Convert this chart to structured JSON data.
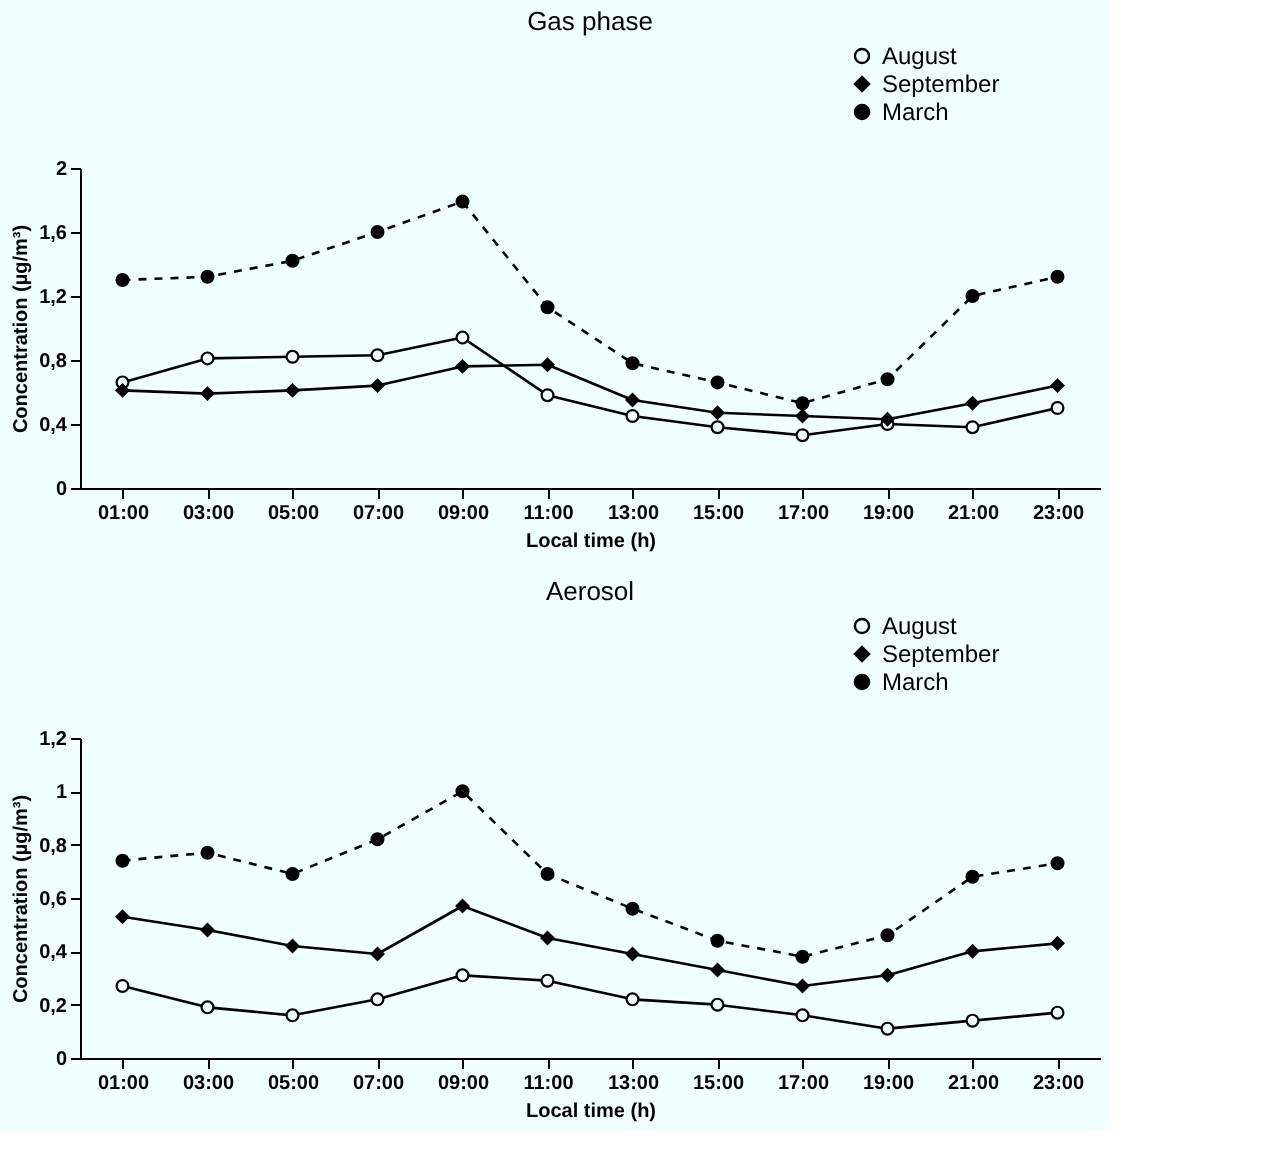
{
  "chart_data": [
    {
      "type": "line",
      "title": "Gas phase",
      "xlabel": "Local time (h)",
      "ylabel": "Concentration (µg/m³)",
      "categories": [
        "01:00",
        "03:00",
        "05:00",
        "07:00",
        "09:00",
        "11:00",
        "13:00",
        "15:00",
        "17:00",
        "19:00",
        "21:00",
        "23:00"
      ],
      "ylim": [
        0,
        2
      ],
      "yticks": [
        0,
        {
          "value": 0.4,
          "label": "0,4"
        },
        {
          "value": 0.8,
          "label": "0,8"
        },
        {
          "value": 1.2,
          "label": "1,2"
        },
        {
          "value": 1.6,
          "label": "1,6"
        },
        2
      ],
      "grid": false,
      "legend": "top right",
      "series": [
        {
          "name": "August",
          "color": "#000000",
          "marker": "circle",
          "line_style": "solid",
          "values": [
            0.66,
            0.81,
            0.82,
            0.83,
            0.94,
            0.58,
            0.45,
            0.38,
            0.33,
            0.4,
            0.38,
            0.5
          ]
        },
        {
          "name": "September",
          "color": "#000000",
          "marker": "diamond",
          "line_style": "solid",
          "values": [
            0.61,
            0.59,
            0.61,
            0.64,
            0.76,
            0.77,
            0.55,
            0.47,
            0.45,
            0.43,
            0.53,
            0.64
          ]
        },
        {
          "name": "March",
          "color": "#000000",
          "marker": "circle",
          "line_style": "dashed",
          "values": [
            1.3,
            1.32,
            1.42,
            1.6,
            1.79,
            1.13,
            0.78,
            0.66,
            0.53,
            0.68,
            1.2,
            1.32
          ]
        }
      ]
    },
    {
      "type": "line",
      "title": "Aerosol",
      "xlabel": "Local time (h)",
      "ylabel": "Concentration (µg/m³)",
      "categories": [
        "01:00",
        "03:00",
        "05:00",
        "07:00",
        "09:00",
        "11:00",
        "13:00",
        "15:00",
        "17:00",
        "19:00",
        "21:00",
        "23:00"
      ],
      "ylim": [
        0,
        1.2
      ],
      "yticks": [
        0,
        {
          "value": 0.2,
          "label": "0,2"
        },
        {
          "value": 0.4,
          "label": "0,4"
        },
        {
          "value": 0.6,
          "label": "0,6"
        },
        {
          "value": 0.8,
          "label": "0,8"
        },
        1,
        {
          "value": 1.2,
          "label": "1,2"
        }
      ],
      "grid": false,
      "legend": "top right",
      "series": [
        {
          "name": "August",
          "color": "#000000",
          "marker": "circle",
          "line_style": "solid",
          "values": [
            0.27,
            0.19,
            0.16,
            0.22,
            0.31,
            0.29,
            0.22,
            0.2,
            0.16,
            0.11,
            0.14,
            0.17
          ]
        },
        {
          "name": "September",
          "color": "#000000",
          "marker": "diamond",
          "line_style": "solid",
          "values": [
            0.53,
            0.48,
            0.42,
            0.39,
            0.57,
            0.45,
            0.39,
            0.33,
            0.27,
            0.31,
            0.4,
            0.43
          ]
        },
        {
          "name": "March",
          "color": "#000000",
          "marker": "circle",
          "line_style": "dashed",
          "values": [
            0.74,
            0.77,
            0.69,
            0.82,
            1.0,
            0.69,
            0.56,
            0.44,
            0.38,
            0.46,
            0.68,
            0.73
          ]
        }
      ]
    }
  ]
}
